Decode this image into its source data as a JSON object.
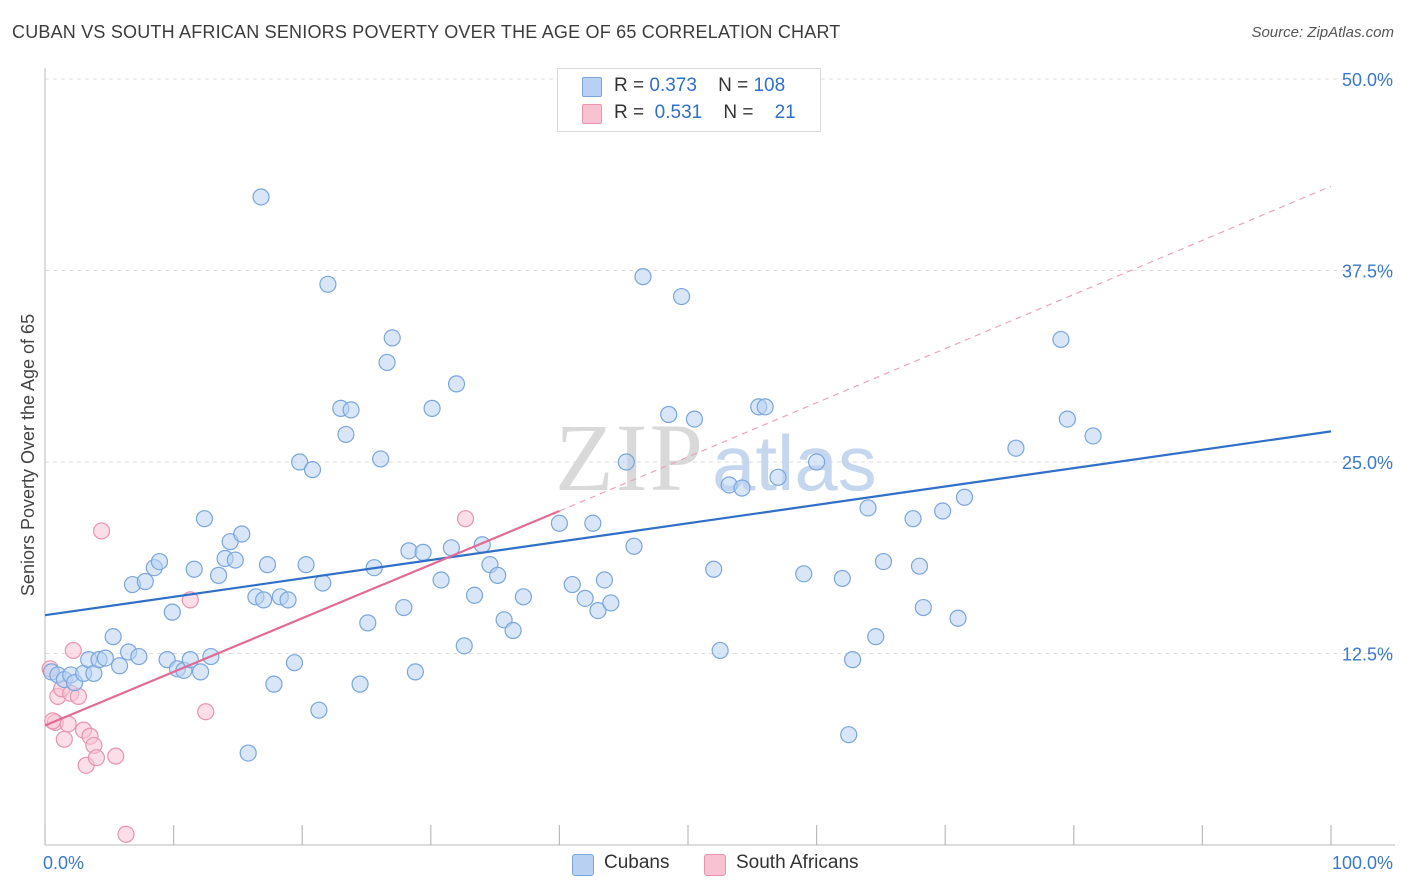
{
  "header": {
    "title": "CUBAN VS SOUTH AFRICAN SENIORS POVERTY OVER THE AGE OF 65 CORRELATION CHART",
    "source": "Source: ZipAtlas.com"
  },
  "legend_top": {
    "rows": [
      {
        "r_label": "R =",
        "r_value": "0.373",
        "n_label": "N =",
        "n_value": "108"
      },
      {
        "r_label": "R =",
        "r_value": "0.531",
        "n_label": "N =",
        "n_value": "21"
      }
    ]
  },
  "legend_bottom": {
    "series0": "Cubans",
    "series1": "South Africans"
  },
  "watermark": {
    "zip": "ZIP",
    "atlas": "atlas"
  },
  "colors": {
    "cubans_fill": "#b8d1f2",
    "cubans_stroke": "#7aa6dc",
    "cubans_line": "#2f6fc8",
    "sa_fill": "#f7c3d3",
    "sa_stroke": "#e893b0",
    "sa_line": "#e06b96",
    "tick_label": "#3a78c9",
    "grid": "#dddddd"
  },
  "chart_data": {
    "type": "scatter",
    "title": "CUBAN VS SOUTH AFRICAN SENIORS POVERTY OVER THE AGE OF 65 CORRELATION CHART",
    "xlabel": "",
    "ylabel": "Seniors Poverty Over the Age of 65",
    "xlim": [
      0,
      100
    ],
    "ylim": [
      0,
      50
    ],
    "x_tick_labels": [
      "0.0%",
      "100.0%"
    ],
    "y_ticks": [
      12.5,
      25.0,
      37.5,
      50.0
    ],
    "y_tick_labels": [
      "12.5%",
      "25.0%",
      "37.5%",
      "50.0%"
    ],
    "grid": true,
    "series": [
      {
        "name": "Cubans",
        "R": 0.373,
        "N": 108,
        "trend": {
          "x0": 0,
          "y0": 15.0,
          "x1": 100,
          "y1": 27.0
        },
        "points": [
          [
            0.5,
            11.3
          ],
          [
            1.0,
            11.1
          ],
          [
            1.5,
            10.8
          ],
          [
            2.0,
            11.1
          ],
          [
            2.3,
            10.6
          ],
          [
            3.0,
            11.2
          ],
          [
            3.4,
            12.1
          ],
          [
            3.8,
            11.2
          ],
          [
            4.2,
            12.1
          ],
          [
            4.7,
            12.2
          ],
          [
            5.3,
            13.6
          ],
          [
            5.8,
            11.7
          ],
          [
            6.5,
            12.6
          ],
          [
            6.8,
            17.0
          ],
          [
            7.3,
            12.3
          ],
          [
            7.8,
            17.2
          ],
          [
            8.5,
            18.1
          ],
          [
            8.9,
            18.5
          ],
          [
            9.5,
            12.1
          ],
          [
            9.9,
            15.2
          ],
          [
            10.3,
            11.5
          ],
          [
            10.8,
            11.4
          ],
          [
            11.3,
            12.1
          ],
          [
            11.6,
            18.0
          ],
          [
            12.1,
            11.3
          ],
          [
            12.4,
            21.3
          ],
          [
            12.9,
            12.3
          ],
          [
            13.5,
            17.6
          ],
          [
            14.0,
            18.7
          ],
          [
            14.4,
            19.8
          ],
          [
            14.8,
            18.6
          ],
          [
            15.3,
            20.3
          ],
          [
            15.8,
            6.0
          ],
          [
            16.4,
            16.2
          ],
          [
            16.8,
            42.3
          ],
          [
            17.0,
            16.0
          ],
          [
            17.3,
            18.3
          ],
          [
            17.8,
            10.5
          ],
          [
            18.3,
            16.2
          ],
          [
            18.9,
            16.0
          ],
          [
            19.4,
            11.9
          ],
          [
            19.8,
            25.0
          ],
          [
            20.3,
            18.3
          ],
          [
            20.8,
            24.5
          ],
          [
            21.3,
            8.8
          ],
          [
            21.6,
            17.1
          ],
          [
            22.0,
            36.6
          ],
          [
            23.0,
            28.5
          ],
          [
            23.4,
            26.8
          ],
          [
            23.8,
            28.4
          ],
          [
            24.5,
            10.5
          ],
          [
            25.1,
            14.5
          ],
          [
            25.6,
            18.1
          ],
          [
            26.1,
            25.2
          ],
          [
            26.6,
            31.5
          ],
          [
            27.0,
            33.1
          ],
          [
            27.9,
            15.5
          ],
          [
            28.3,
            19.2
          ],
          [
            28.8,
            11.3
          ],
          [
            29.4,
            19.1
          ],
          [
            30.1,
            28.5
          ],
          [
            30.8,
            17.3
          ],
          [
            31.6,
            19.4
          ],
          [
            32.0,
            30.1
          ],
          [
            32.6,
            13.0
          ],
          [
            33.4,
            16.3
          ],
          [
            34.0,
            19.6
          ],
          [
            34.6,
            18.3
          ],
          [
            35.2,
            17.6
          ],
          [
            35.7,
            14.7
          ],
          [
            36.4,
            14.0
          ],
          [
            37.2,
            16.2
          ],
          [
            40.0,
            21.0
          ],
          [
            41.0,
            17.0
          ],
          [
            42.0,
            16.1
          ],
          [
            42.6,
            21.0
          ],
          [
            43.0,
            15.3
          ],
          [
            43.5,
            17.3
          ],
          [
            44.0,
            15.8
          ],
          [
            45.2,
            25.0
          ],
          [
            45.8,
            19.5
          ],
          [
            46.5,
            37.1
          ],
          [
            48.5,
            28.1
          ],
          [
            49.5,
            35.8
          ],
          [
            50.5,
            27.8
          ],
          [
            52.0,
            18.0
          ],
          [
            52.5,
            12.7
          ],
          [
            53.2,
            23.5
          ],
          [
            54.2,
            23.3
          ],
          [
            55.5,
            28.6
          ],
          [
            56.0,
            28.6
          ],
          [
            57.0,
            24.0
          ],
          [
            59.0,
            17.7
          ],
          [
            60.0,
            25.0
          ],
          [
            62.0,
            17.4
          ],
          [
            62.5,
            7.2
          ],
          [
            62.8,
            12.1
          ],
          [
            64.0,
            22.0
          ],
          [
            64.6,
            13.6
          ],
          [
            65.2,
            18.5
          ],
          [
            67.5,
            21.3
          ],
          [
            68.0,
            18.2
          ],
          [
            68.3,
            15.5
          ],
          [
            69.8,
            21.8
          ],
          [
            71.0,
            14.8
          ],
          [
            71.5,
            22.7
          ],
          [
            75.5,
            25.9
          ],
          [
            79.0,
            33.0
          ],
          [
            79.5,
            27.8
          ],
          [
            81.5,
            26.7
          ]
        ]
      },
      {
        "name": "South Africans",
        "R": 0.531,
        "N": 21,
        "trend": {
          "x0": 0,
          "y0": 7.8,
          "x1": 40,
          "y1": 21.8
        },
        "trend_extension": {
          "x0": 40,
          "y0": 21.8,
          "x1": 100,
          "y1": 43.0
        },
        "points": [
          [
            0.4,
            11.5
          ],
          [
            0.8,
            8.0
          ],
          [
            1.0,
            9.7
          ],
          [
            1.3,
            10.2
          ],
          [
            1.5,
            6.9
          ],
          [
            1.8,
            7.9
          ],
          [
            2.0,
            9.9
          ],
          [
            2.2,
            12.7
          ],
          [
            2.6,
            9.7
          ],
          [
            3.0,
            7.5
          ],
          [
            3.2,
            5.2
          ],
          [
            3.5,
            7.1
          ],
          [
            3.8,
            6.5
          ],
          [
            4.0,
            5.7
          ],
          [
            4.4,
            20.5
          ],
          [
            5.5,
            5.8
          ],
          [
            6.3,
            0.7
          ],
          [
            11.3,
            16.0
          ],
          [
            12.5,
            8.7
          ],
          [
            32.7,
            21.3
          ],
          [
            0.6,
            8.1
          ]
        ]
      }
    ]
  }
}
